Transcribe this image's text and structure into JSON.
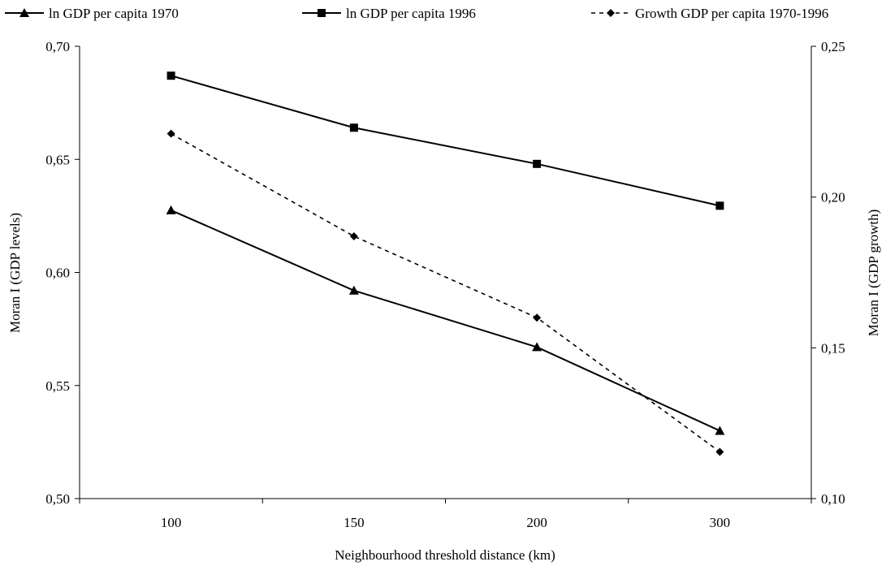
{
  "chart_data": {
    "type": "line",
    "xlabel": "Neighbourhood threshold distance (km)",
    "ylabel_left": "Moran I (GDP levels)",
    "ylabel_right": "Moran I (GDP growth)",
    "categories": [
      "100",
      "150",
      "200",
      "300"
    ],
    "y_left": {
      "lim": [
        0.5,
        0.7
      ],
      "ticks": [
        "0,50",
        "0,55",
        "0,60",
        "0,65",
        "0,70"
      ]
    },
    "y_right": {
      "lim": [
        0.1,
        0.25
      ],
      "ticks": [
        "0,10",
        "0,15",
        "0,20",
        "0,25"
      ]
    },
    "grid": false,
    "legend_position": "top",
    "series": [
      {
        "name": "ln GDP per capita 1970",
        "axis": "left",
        "marker": "triangle",
        "dash": "solid",
        "values": [
          0.6275,
          0.592,
          0.567,
          0.53
        ]
      },
      {
        "name": "ln GDP per capita 1996",
        "axis": "left",
        "marker": "square",
        "dash": "solid",
        "values": [
          0.687,
          0.664,
          0.648,
          0.6295
        ]
      },
      {
        "name": "Growth GDP per capita 1970-1996",
        "axis": "right",
        "marker": "diamond",
        "dash": "dashed",
        "values": [
          0.221,
          0.187,
          0.16,
          0.1155
        ]
      }
    ]
  }
}
